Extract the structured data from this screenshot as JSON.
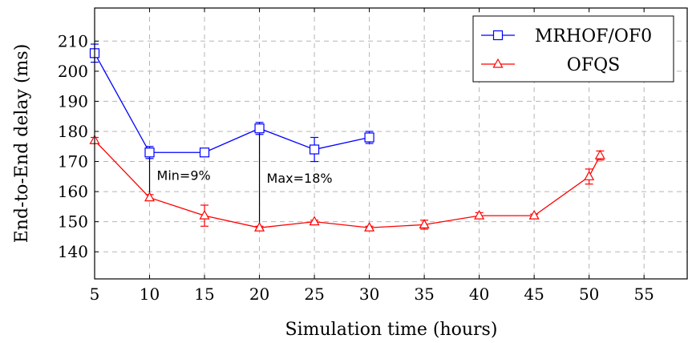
{
  "chart_data": {
    "type": "line",
    "xlabel": "Simulation time (hours)",
    "ylabel": "End-to-End delay (ms)",
    "xlim": [
      5,
      59
    ],
    "ylim": [
      131,
      221
    ],
    "xticks": [
      "5",
      "10",
      "15",
      "20",
      "25",
      "30",
      "35",
      "40",
      "45",
      "50",
      "55"
    ],
    "yticks": [
      "140",
      "150",
      "160",
      "170",
      "180",
      "190",
      "200",
      "210"
    ],
    "grid": true,
    "legend_position": "top-right",
    "series": [
      {
        "name": "MRHOF/OF0",
        "color": "#0000ff",
        "marker": "square",
        "x": [
          5,
          10,
          15,
          20,
          25,
          30
        ],
        "y": [
          206,
          173,
          173,
          181,
          174,
          178
        ],
        "err": [
          3,
          2,
          1,
          2,
          4,
          2
        ]
      },
      {
        "name": "OFQS",
        "color": "#ff0000",
        "marker": "triangle",
        "x": [
          5,
          10,
          15,
          20,
          25,
          30,
          35,
          40,
          45,
          50,
          51
        ],
        "y": [
          177,
          158,
          152,
          148,
          150,
          148,
          149,
          152,
          152,
          165,
          172
        ],
        "err": [
          1,
          1,
          3.5,
          0.5,
          0.5,
          0.5,
          1.5,
          1,
          0.5,
          2.5,
          1.5
        ]
      }
    ],
    "annotations": [
      {
        "text": "Min=9%",
        "x": 10,
        "y_from": 158,
        "y_to": 173
      },
      {
        "text": "Max=18%",
        "x": 20,
        "y_from": 148,
        "y_to": 181
      }
    ]
  }
}
